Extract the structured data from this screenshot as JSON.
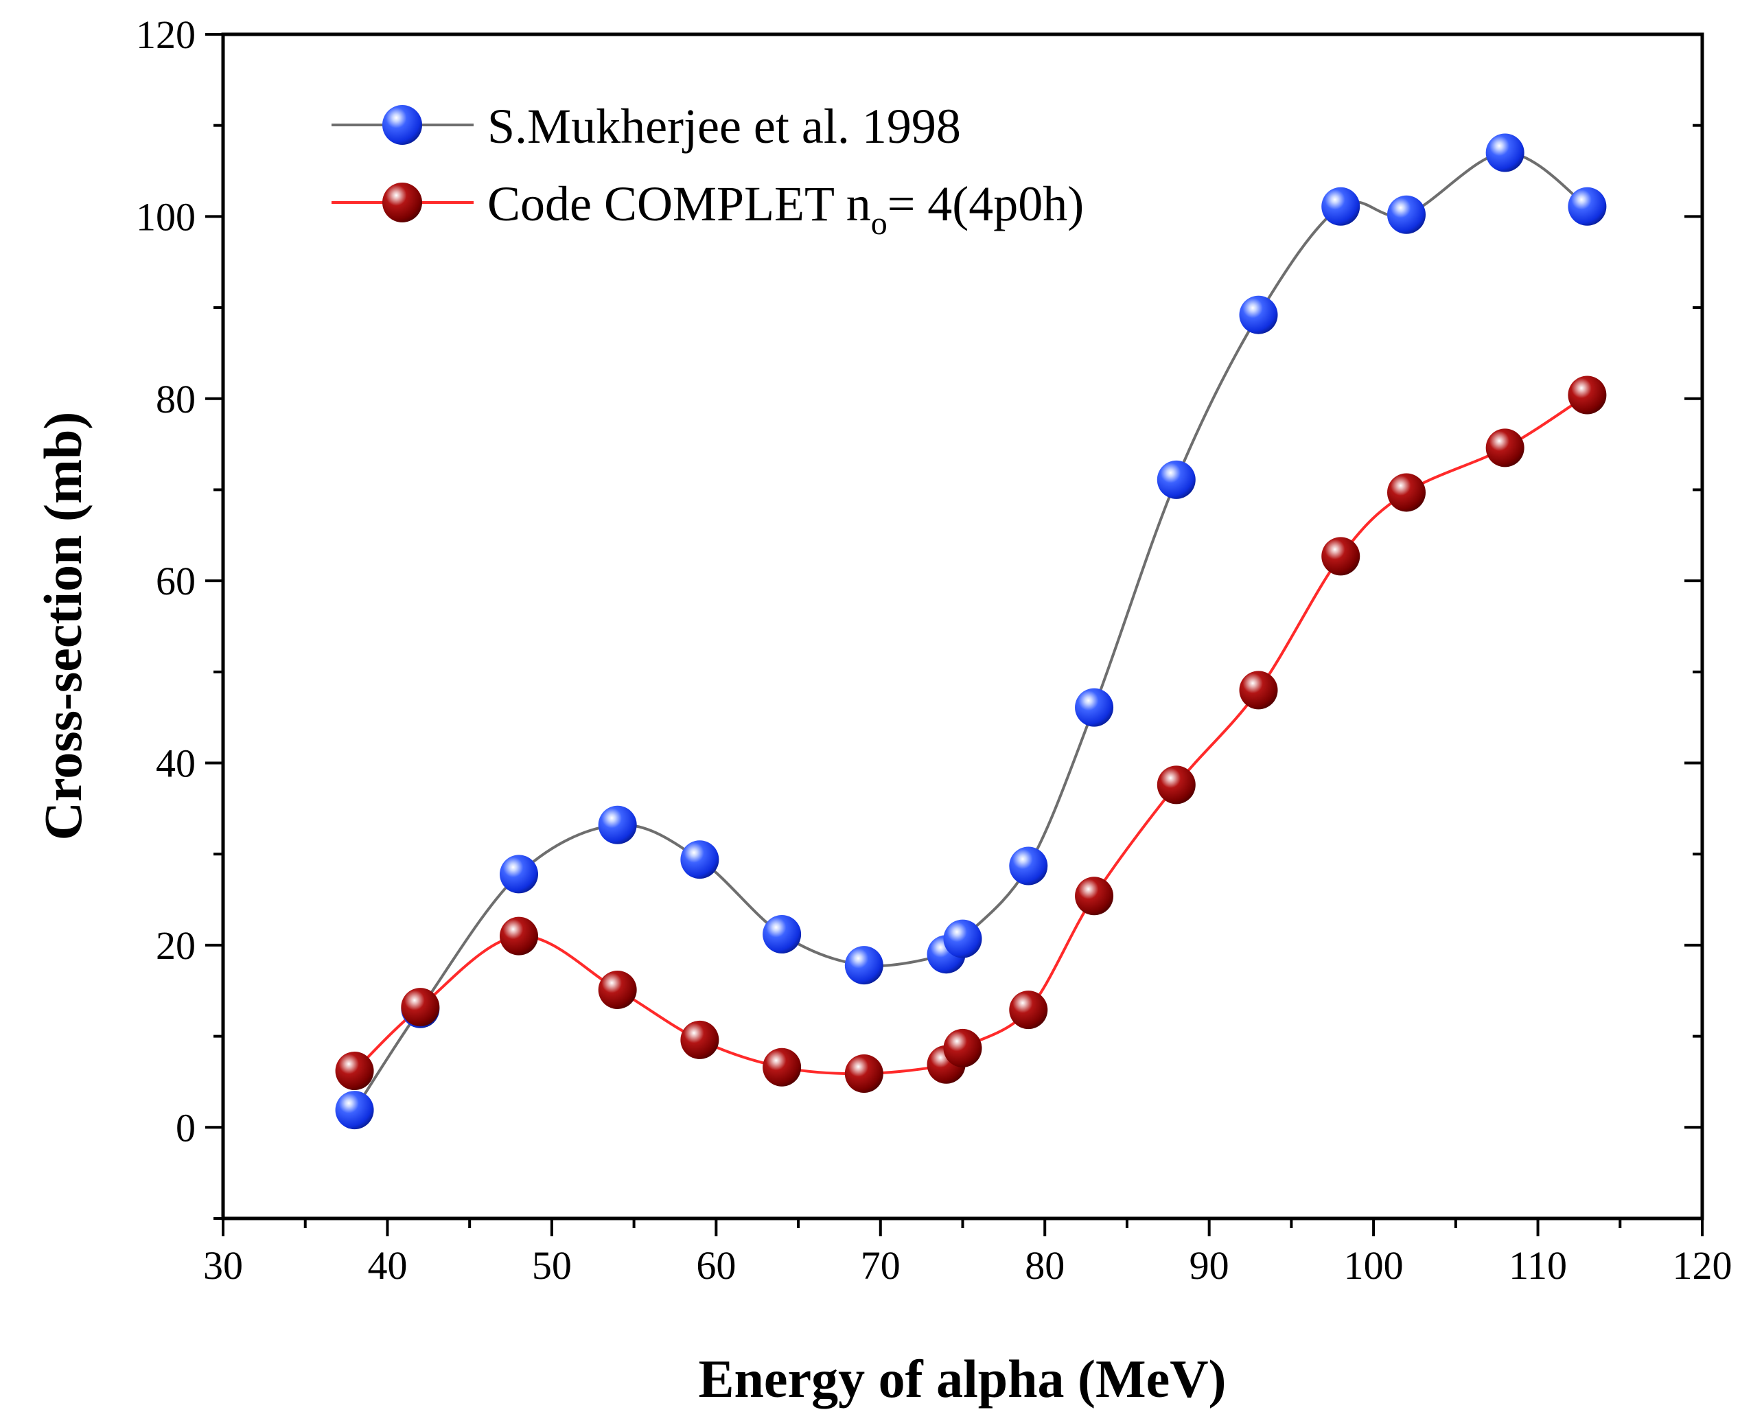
{
  "chart_data": {
    "type": "line",
    "title": "",
    "xlabel": "Energy of alpha (MeV)",
    "ylabel": "Cross-section (mb)",
    "xlim": [
      30,
      120
    ],
    "ylim": [
      -10,
      120
    ],
    "xticks": [
      30,
      40,
      50,
      60,
      70,
      80,
      90,
      100,
      110,
      120
    ],
    "yticks": [
      0,
      20,
      40,
      60,
      80,
      100,
      120
    ],
    "legend_position": "top-left",
    "series": [
      {
        "name": "S.Mukherjee et al. 1998",
        "line_color": "#6e6e6e",
        "marker_color": "#1a3cff",
        "x": [
          38,
          42,
          48,
          54,
          59,
          64,
          69,
          74,
          75,
          79,
          83,
          88,
          93,
          98,
          102,
          108,
          113
        ],
        "y": [
          1.9,
          13.0,
          27.8,
          33.2,
          29.4,
          21.2,
          17.8,
          19.0,
          20.7,
          28.7,
          46.1,
          71.1,
          89.2,
          101.1,
          100.2,
          107.0,
          101.1
        ]
      },
      {
        "name": "Code COMPLET n",
        "name_subscript": "o",
        "name_suffix": "= 4(4p0h)",
        "line_color": "#ff2a2a",
        "marker_color": "#8b0000",
        "x": [
          38,
          42,
          48,
          54,
          59,
          64,
          69,
          74,
          75,
          79,
          83,
          88,
          93,
          98,
          102,
          108,
          113
        ],
        "y": [
          6.2,
          13.2,
          21.0,
          15.1,
          9.6,
          6.6,
          5.9,
          6.9,
          8.7,
          12.9,
          25.4,
          37.6,
          48.0,
          62.7,
          69.7,
          74.6,
          80.4
        ]
      }
    ]
  }
}
